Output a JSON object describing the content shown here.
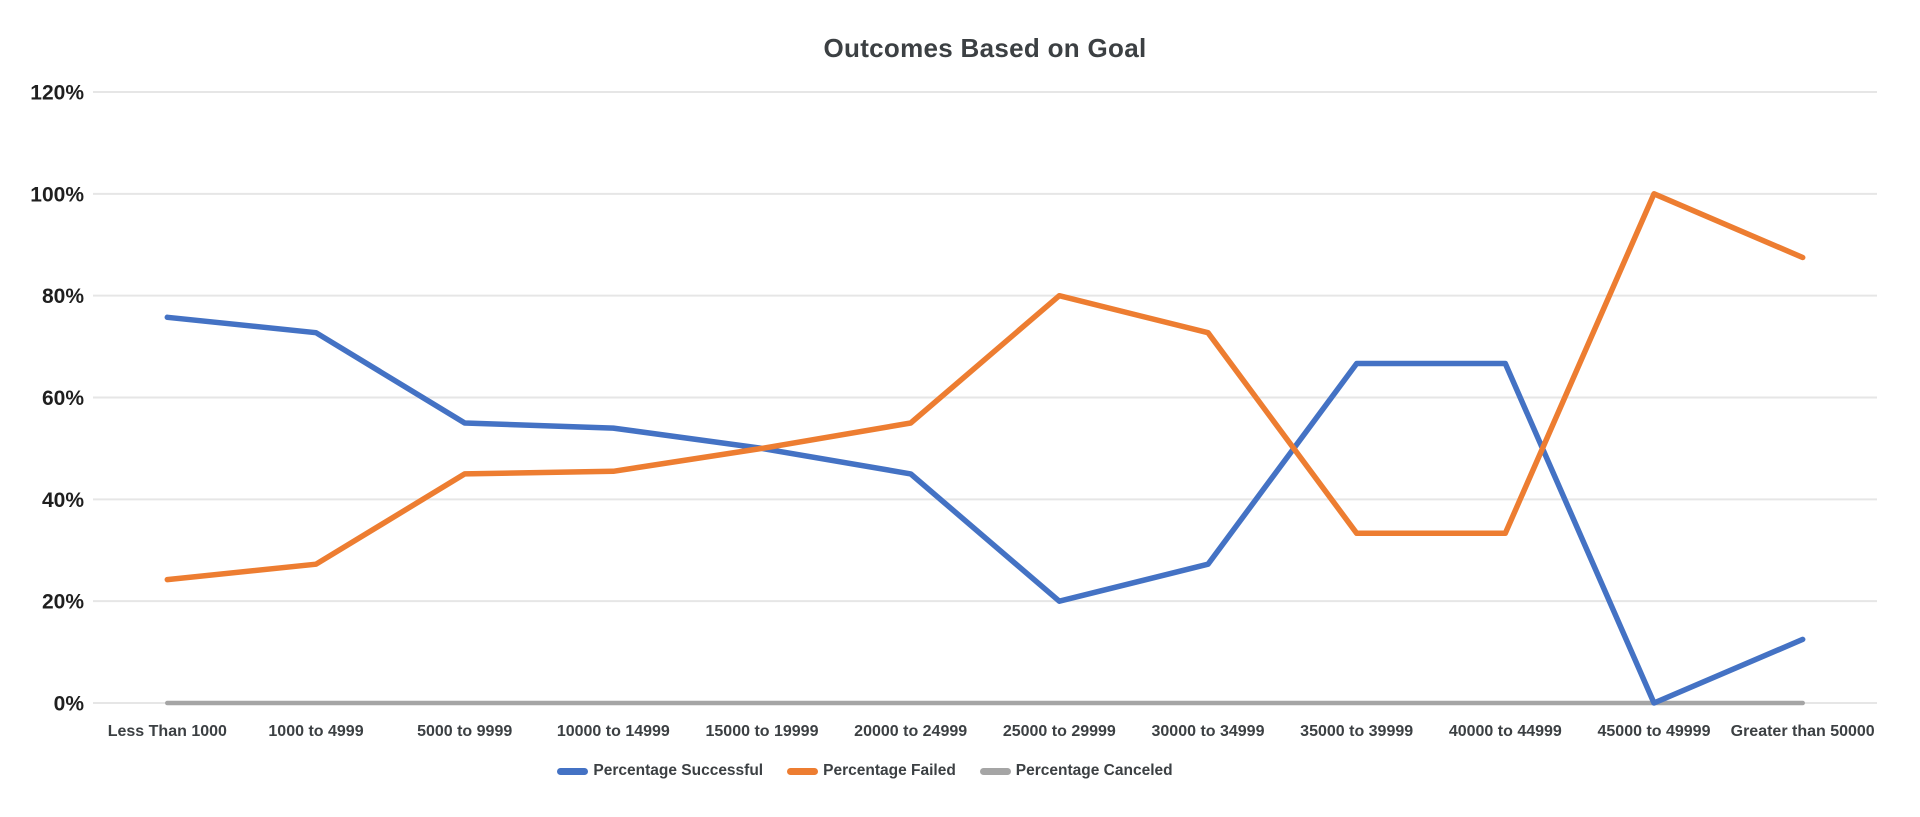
{
  "page": {
    "background_color": "#ffffff"
  },
  "chart_data": {
    "type": "line",
    "title": "Outcomes Based on Goal",
    "categories": [
      "Less Than 1000",
      "1000 to 4999",
      "5000 to 9999",
      "10000 to 14999",
      "15000 to 19999",
      "20000 to 24999",
      "25000 to 29999",
      "30000 to 34999",
      "35000 to 39999",
      "40000 to 44999",
      "45000 to 49999",
      "Greater than 50000"
    ],
    "series": [
      {
        "name": "Percentage Successful",
        "color": "#4472C4",
        "values": [
          75.76,
          72.73,
          55,
          54,
          50,
          45,
          20,
          27.27,
          66.67,
          66.67,
          0,
          12.5
        ]
      },
      {
        "name": "Percentage Failed",
        "color": "#ED7D31",
        "values": [
          24.24,
          27.27,
          45,
          45.5,
          50,
          55,
          80,
          72.73,
          33.33,
          33.33,
          100,
          87.5
        ]
      },
      {
        "name": "Percentage Canceled",
        "color": "#A5A5A5",
        "values": [
          0,
          0,
          0,
          0,
          0,
          0,
          0,
          0,
          0,
          0,
          0,
          0
        ]
      }
    ],
    "y_axis": {
      "min": 0,
      "max": 120,
      "ticks": [
        {
          "value": 0,
          "label": "0%"
        },
        {
          "value": 20,
          "label": "20%"
        },
        {
          "value": 40,
          "label": "40%"
        },
        {
          "value": 60,
          "label": "60%"
        },
        {
          "value": 80,
          "label": "80%"
        },
        {
          "value": 100,
          "label": "100%"
        },
        {
          "value": 120,
          "label": "120%"
        }
      ]
    },
    "xlabel": "",
    "ylabel": "",
    "grid": true,
    "grid_color": "#e6e6e6",
    "legend_position": "bottom",
    "text_colors": {
      "title": "#3c4043",
      "y_tick": "#1f1f1f",
      "x_tick": "#3c4043",
      "legend": "#3c4043"
    }
  }
}
